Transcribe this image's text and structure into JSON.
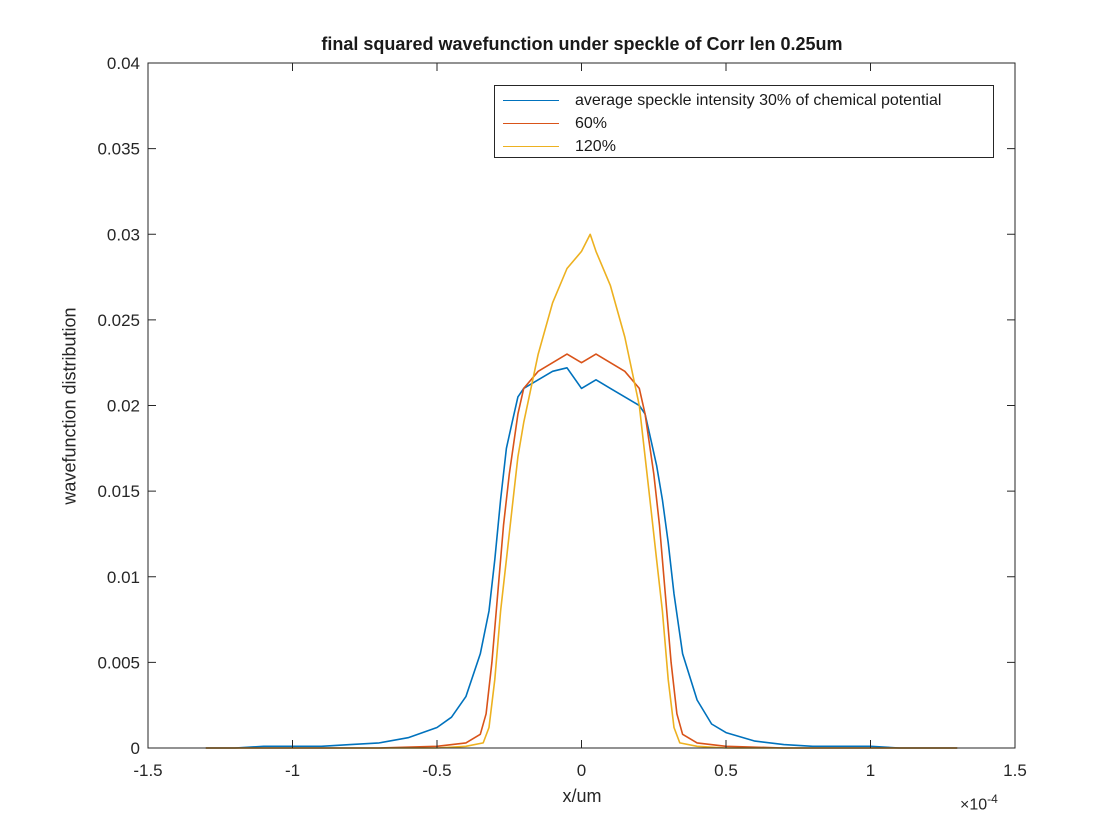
{
  "chart_data": {
    "type": "line",
    "title": "final squared wavefunction under speckle of Corr len 0.25um",
    "xlabel": "x/um",
    "ylabel": "wavefunction distribution",
    "x_exponent_base": "×10",
    "x_exponent_power": "-4",
    "xlim": [
      -1.5,
      1.5
    ],
    "ylim": [
      0,
      0.04
    ],
    "x_ticks": [
      -1.5,
      -1,
      -0.5,
      0,
      0.5,
      1,
      1.5
    ],
    "x_tick_labels": [
      "-1.5",
      "-1",
      "-0.5",
      "0",
      "0.5",
      "1",
      "1.5"
    ],
    "y_ticks": [
      0,
      0.005,
      0.01,
      0.015,
      0.02,
      0.025,
      0.03,
      0.035,
      0.04
    ],
    "y_tick_labels": [
      "0",
      "0.005",
      "0.01",
      "0.015",
      "0.02",
      "0.025",
      "0.03",
      "0.035",
      "0.04"
    ],
    "grid": false,
    "legend_placement": "top-right",
    "series": [
      {
        "name": "average speckle intensity 30% of chemical potential",
        "color": "#0072BD",
        "x": [
          -1.3,
          -1.2,
          -1.1,
          -1.0,
          -0.9,
          -0.8,
          -0.7,
          -0.6,
          -0.5,
          -0.45,
          -0.4,
          -0.35,
          -0.32,
          -0.3,
          -0.28,
          -0.26,
          -0.24,
          -0.22,
          -0.2,
          -0.15,
          -0.1,
          -0.05,
          0.0,
          0.05,
          0.1,
          0.15,
          0.2,
          0.22,
          0.24,
          0.26,
          0.28,
          0.3,
          0.32,
          0.35,
          0.4,
          0.45,
          0.5,
          0.6,
          0.7,
          0.8,
          0.9,
          1.0,
          1.1,
          1.2,
          1.3
        ],
        "y": [
          0.0,
          0.0,
          0.0001,
          0.0001,
          0.0001,
          0.0002,
          0.0003,
          0.0006,
          0.0012,
          0.0018,
          0.003,
          0.0055,
          0.008,
          0.011,
          0.0145,
          0.0175,
          0.019,
          0.0205,
          0.021,
          0.0215,
          0.022,
          0.0222,
          0.021,
          0.0215,
          0.021,
          0.0205,
          0.02,
          0.0195,
          0.018,
          0.0165,
          0.0145,
          0.012,
          0.009,
          0.0055,
          0.0028,
          0.0014,
          0.0009,
          0.0004,
          0.0002,
          0.0001,
          0.0001,
          0.0001,
          0.0,
          0.0,
          0.0
        ]
      },
      {
        "name": "60%",
        "color": "#D95319",
        "x": [
          -1.3,
          -1.0,
          -0.7,
          -0.5,
          -0.4,
          -0.35,
          -0.33,
          -0.31,
          -0.29,
          -0.27,
          -0.25,
          -0.22,
          -0.2,
          -0.15,
          -0.1,
          -0.05,
          0.0,
          0.05,
          0.1,
          0.15,
          0.2,
          0.22,
          0.25,
          0.27,
          0.29,
          0.31,
          0.33,
          0.35,
          0.4,
          0.5,
          0.7,
          1.0,
          1.3
        ],
        "y": [
          0.0,
          0.0,
          0.0,
          0.0001,
          0.0003,
          0.0008,
          0.002,
          0.005,
          0.009,
          0.013,
          0.016,
          0.0195,
          0.021,
          0.022,
          0.0225,
          0.023,
          0.0225,
          0.023,
          0.0225,
          0.022,
          0.021,
          0.0195,
          0.016,
          0.013,
          0.009,
          0.005,
          0.002,
          0.0008,
          0.0003,
          0.0001,
          0.0,
          0.0,
          0.0
        ]
      },
      {
        "name": "120%",
        "color": "#EDB120",
        "x": [
          -1.3,
          -1.0,
          -0.7,
          -0.5,
          -0.4,
          -0.34,
          -0.32,
          -0.3,
          -0.28,
          -0.26,
          -0.24,
          -0.22,
          -0.2,
          -0.15,
          -0.1,
          -0.05,
          0.0,
          0.03,
          0.05,
          0.1,
          0.15,
          0.2,
          0.22,
          0.24,
          0.26,
          0.28,
          0.3,
          0.32,
          0.34,
          0.4,
          0.5,
          0.7,
          1.0,
          1.3
        ],
        "y": [
          0.0,
          0.0,
          0.0,
          0.0,
          0.0001,
          0.0003,
          0.0012,
          0.004,
          0.008,
          0.011,
          0.014,
          0.017,
          0.019,
          0.023,
          0.026,
          0.028,
          0.029,
          0.03,
          0.029,
          0.027,
          0.024,
          0.02,
          0.017,
          0.014,
          0.011,
          0.008,
          0.004,
          0.0012,
          0.0003,
          0.0001,
          0.0,
          0.0,
          0.0,
          0.0
        ]
      }
    ]
  }
}
